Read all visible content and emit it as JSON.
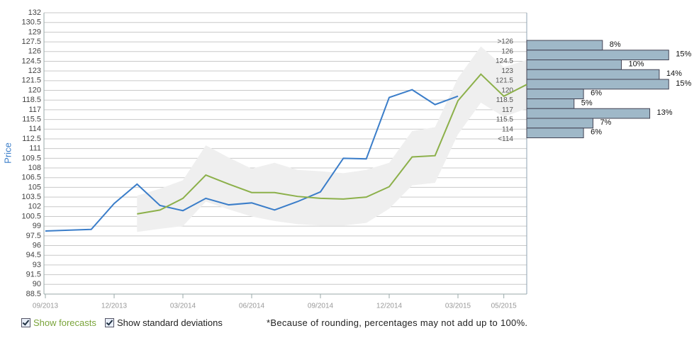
{
  "chart_data": {
    "type": "line",
    "ylabel": "Price",
    "ylim": [
      88.5,
      132
    ],
    "yticks": [
      88.5,
      90,
      91.5,
      93,
      94.5,
      96,
      97.5,
      99,
      100.5,
      102,
      103.5,
      105,
      106.5,
      108,
      109.5,
      111,
      112.5,
      114,
      115.5,
      117,
      118.5,
      120,
      121.5,
      123,
      124.5,
      126,
      127.5,
      129,
      130.5,
      132
    ],
    "xlim": [
      "09/2013",
      "06/2015"
    ],
    "xticks": [
      "09/2013",
      "12/2013",
      "03/2014",
      "06/2014",
      "09/2014",
      "12/2014",
      "03/2015",
      "05/2015"
    ],
    "grid": true,
    "band": {
      "color": "#efefef",
      "x": [
        "01/2014",
        "02/2014",
        "03/2014",
        "04/2014",
        "05/2014",
        "06/2014",
        "07/2014",
        "08/2014",
        "09/2014",
        "10/2014",
        "11/2014",
        "12/2014",
        "01/2015",
        "02/2015",
        "03/2015",
        "04/2015",
        "05/2015",
        "06/2015"
      ],
      "upper": [
        103.7,
        104.8,
        106.1,
        111.5,
        109.6,
        107.9,
        108.8,
        107.7,
        107.5,
        107.2,
        107.7,
        108.8,
        113.7,
        114.3,
        121.9,
        126.8,
        123.6,
        124.7
      ],
      "lower": [
        98.1,
        98.6,
        99,
        102.8,
        101.6,
        100.5,
        99.8,
        99.3,
        99.1,
        99.1,
        99.5,
        101.7,
        105.3,
        105.7,
        113.2,
        118.1,
        115.9,
        117.2
      ]
    },
    "series": [
      {
        "color": "#3a7dc9",
        "x": [
          "09/2013",
          "11/2013",
          "12/2013",
          "01/2014",
          "02/2014",
          "03/2014",
          "04/2014",
          "05/2014",
          "06/2014",
          "07/2014",
          "08/2014",
          "09/2014",
          "10/2014",
          "11/2014",
          "12/2014",
          "01/2015",
          "02/2015",
          "03/2015"
        ],
        "values": [
          98.25,
          98.5,
          102.5,
          105.5,
          102.2,
          101.4,
          103.3,
          102.3,
          102.6,
          101.5,
          102.8,
          104.3,
          109.5,
          109.4,
          118.9,
          120.1,
          117.8,
          119.1
        ]
      },
      {
        "color": "#8cb04a",
        "x": [
          "01/2014",
          "02/2014",
          "03/2014",
          "04/2014",
          "05/2014",
          "06/2014",
          "07/2014",
          "08/2014",
          "09/2014",
          "10/2014",
          "11/2014",
          "12/2014",
          "01/2015",
          "02/2015",
          "03/2015",
          "04/2015",
          "05/2015",
          "06/2015"
        ],
        "values": [
          100.9,
          101.5,
          103.3,
          106.9,
          105.5,
          104.2,
          104.2,
          103.6,
          103.3,
          103.2,
          103.5,
          105.1,
          109.7,
          109.9,
          118.4,
          122.5,
          119.1,
          120.9
        ]
      }
    ],
    "distribution": {
      "type": "bar",
      "color": "#9fb8c8",
      "categories": [
        ">126",
        "126",
        "124.5",
        "123",
        "121.5",
        "120",
        "118.5",
        "117",
        "115.5",
        "114",
        "<114"
      ],
      "values": [
        8,
        15,
        10,
        14,
        15,
        6,
        5,
        13,
        7,
        6,
        null
      ],
      "value_labels": [
        "8%",
        "15%",
        "10%",
        "14%",
        "15%",
        "6%",
        "5%",
        "13%",
        "7%",
        "6%",
        null
      ]
    }
  },
  "controls": [
    {
      "label": "Show forecasts",
      "checked": true
    },
    {
      "label": "Show standard deviations",
      "checked": true
    }
  ],
  "footnote": "*Because of rounding, percentages may not add up to 100%."
}
